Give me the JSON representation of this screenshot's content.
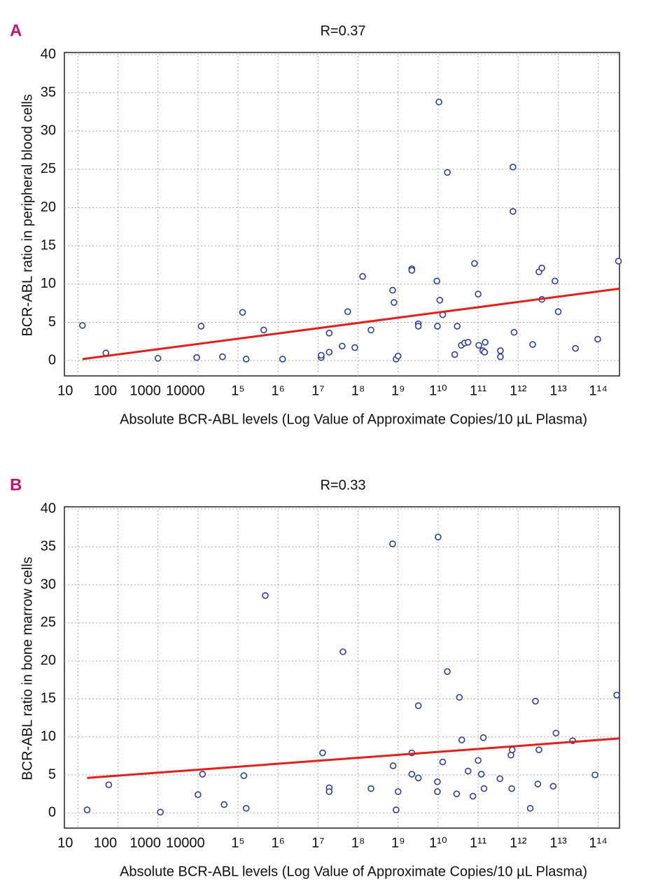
{
  "chart_data": [
    {
      "type": "scatter",
      "panel": "A",
      "title": "R=0.37",
      "xlabel": "Absolute BCR-ABL levels (Log Value of Approximate Copies/10 µL Plasma)",
      "ylabel": "BCR-ABL ratio in peripheral blood cells",
      "xscale": "log",
      "xlim": [
        4.6,
        340000000000000.0
      ],
      "ylim": [
        -2,
        40
      ],
      "xticks": [
        10,
        100,
        1000,
        10000,
        {
          "value": 100000.0,
          "label": "1⁵"
        },
        {
          "value": 1000000.0,
          "label": "1⁶"
        },
        {
          "value": 10000000.0,
          "label": "1⁷"
        },
        {
          "value": 100000000.0,
          "label": "1⁸"
        },
        {
          "value": 1000000000.0,
          "label": "1⁹"
        },
        {
          "value": 10000000000.0,
          "label": "1¹⁰"
        },
        {
          "value": 100000000000.0,
          "label": "1¹¹"
        },
        {
          "value": 1000000000000.0,
          "label": "1¹²"
        },
        {
          "value": 10000000000000.0,
          "label": "1¹³"
        },
        {
          "value": 100000000000000.0,
          "label": "1¹⁴"
        }
      ],
      "yticks": [
        0,
        5,
        10,
        15,
        20,
        25,
        30,
        35,
        40
      ],
      "grid": true,
      "color": "#2b3f9c",
      "x": [
        13,
        50,
        1000,
        9300,
        12000.0,
        41000.0,
        130000.0,
        160000.0,
        440000.0,
        1300000.0,
        12000000.0,
        12000000.0,
        19000000.0,
        19000000.0,
        40000000.0,
        55000000.0,
        83000000.0,
        130000000.0,
        210000000.0,
        730000000.0,
        790000000.0,
        890000000.0,
        1000000000.0,
        2200000000.0,
        2200000000.0,
        3200000000.0,
        3200000000.0,
        9300000000.0,
        9600000000.0,
        10500000000.0,
        11000000000.0,
        13000000000.0,
        17000000000.0,
        26000000000.0,
        30000000000.0,
        38000000000.0,
        46000000000.0,
        56000000000.0,
        81000000000.0,
        100000000000.0,
        104000000000.0,
        130000000000.0,
        145000000000.0,
        150000000000.0,
        360000000000.0,
        360000000000.0,
        740000000000.0,
        740000000000.0,
        790000000000.0,
        2300000000000.0,
        3300000000000.0,
        3900000000000.0,
        3900000000000.0,
        8300000000000.0,
        10000000000000.0,
        27000000000000.0,
        97000000000000.0,
        320000000000000.0
      ],
      "values": [
        4.6,
        1.0,
        0.3,
        0.4,
        4.5,
        0.5,
        6.3,
        0.2,
        4.0,
        0.2,
        0.4,
        0.7,
        3.6,
        1.1,
        1.9,
        6.4,
        1.7,
        11.0,
        4.0,
        9.2,
        7.6,
        0.2,
        0.6,
        12.0,
        11.8,
        4.8,
        4.5,
        10.4,
        4.5,
        33.8,
        7.9,
        6.0,
        24.6,
        0.8,
        4.5,
        2.0,
        2.3,
        2.4,
        12.7,
        8.7,
        2.0,
        1.3,
        1.1,
        2.4,
        1.3,
        0.5,
        25.3,
        19.5,
        3.7,
        2.1,
        11.6,
        12.1,
        8.0,
        10.4,
        6.4,
        1.6,
        2.8,
        13.0
      ],
      "trend": {
        "x": [
          13,
          340000000000000.0
        ],
        "values": [
          0.2,
          9.4
        ],
        "color": "#e0201b"
      }
    },
    {
      "type": "scatter",
      "panel": "B",
      "title": "R=0.33",
      "xlabel": "Absolute BCR-ABL levels (Log Value of Approximate Copies/10 µL Plasma)",
      "ylabel": "BCR-ABL ratio in bone marrow cells",
      "xscale": "log",
      "xlim": [
        4.6,
        340000000000000.0
      ],
      "ylim": [
        -2,
        40
      ],
      "xticks": [
        10,
        100,
        1000,
        10000,
        {
          "value": 100000.0,
          "label": "1⁵"
        },
        {
          "value": 1000000.0,
          "label": "1⁶"
        },
        {
          "value": 10000000.0,
          "label": "1⁷"
        },
        {
          "value": 100000000.0,
          "label": "1⁸"
        },
        {
          "value": 1000000000.0,
          "label": "1⁹"
        },
        {
          "value": 10000000000.0,
          "label": "1¹⁰"
        },
        {
          "value": 100000000000.0,
          "label": "1¹¹"
        },
        {
          "value": 1000000000000.0,
          "label": "1¹²"
        },
        {
          "value": 10000000000000.0,
          "label": "1¹³"
        },
        {
          "value": 100000000000000.0,
          "label": "1¹⁴"
        }
      ],
      "yticks": [
        0,
        5,
        10,
        15,
        20,
        25,
        30,
        35,
        40
      ],
      "grid": true,
      "color": "#2b3f9c",
      "x": [
        17,
        59,
        1150,
        10000.0,
        13000.0,
        45000.0,
        140000.0,
        160000.0,
        480000.0,
        13000000.0,
        19000000.0,
        19000000.0,
        42000000.0,
        210000000.0,
        730000000.0,
        750000000.0,
        890000000.0,
        1000000000.0,
        2200000000.0,
        2200000000.0,
        3200000000.0,
        3200000000.0,
        10000000000.0,
        9600000000.0,
        9600000000.0,
        13000000000.0,
        17000000000.0,
        29000000000.0,
        34000000000.0,
        39000000000.0,
        56000000000.0,
        74000000000.0,
        100000000000.0,
        120000000000.0,
        135000000000.0,
        140000000000.0,
        350000000000.0,
        660000000000.0,
        690000000000.0,
        710000000000.0,
        2000000000000.0,
        2700000000000.0,
        3100000000000.0,
        3300000000000.0,
        7500000000000.0,
        8800000000000.0,
        23000000000000.0,
        83000000000000.0,
        290000000000000.0
      ],
      "values": [
        0.4,
        3.7,
        0.1,
        2.4,
        5.1,
        1.1,
        4.9,
        0.6,
        28.6,
        7.9,
        3.3,
        2.8,
        21.2,
        3.2,
        35.4,
        6.2,
        0.4,
        2.8,
        7.9,
        5.1,
        4.6,
        14.1,
        36.3,
        4.1,
        2.8,
        6.7,
        18.6,
        2.5,
        15.2,
        9.6,
        5.5,
        2.2,
        6.9,
        5.1,
        9.9,
        3.2,
        4.5,
        7.6,
        3.2,
        8.3,
        0.6,
        14.7,
        3.8,
        8.3,
        3.5,
        10.5,
        9.5,
        5.0,
        15.5
      ],
      "trend": {
        "x": [
          17,
          340000000000000.0
        ],
        "values": [
          4.6,
          9.8
        ],
        "color": "#e0201b"
      }
    }
  ]
}
